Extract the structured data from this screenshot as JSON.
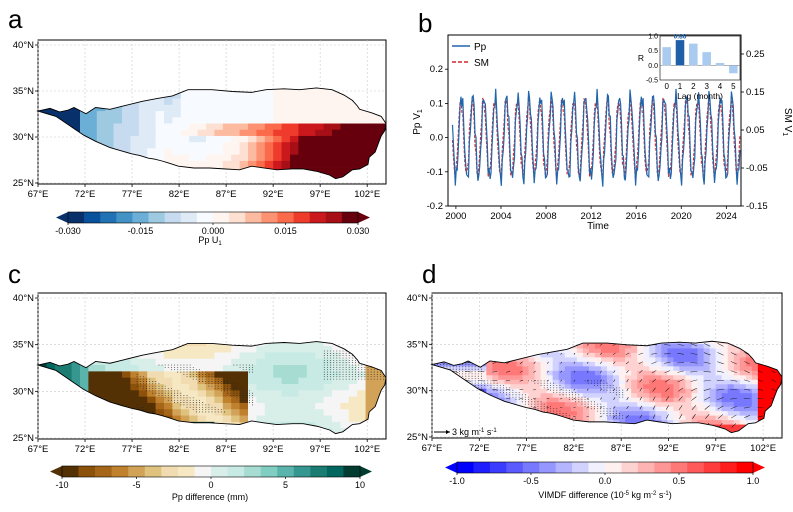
{
  "chart_data": [
    {
      "panel": "a",
      "type": "heatmap",
      "map_region": "Tibetan Plateau",
      "lon_ticks": [
        "67°E",
        "72°E",
        "77°E",
        "82°E",
        "87°E",
        "92°E",
        "97°E",
        "102°E"
      ],
      "lat_ticks": [
        "40°N",
        "35°N",
        "30°N",
        "25°N"
      ],
      "colorbar": {
        "label": "Pp U",
        "label_sub": "1",
        "ticks": [
          "-0.030",
          "-0.015",
          "0.000",
          "0.015",
          "0.030"
        ],
        "range": [
          -0.03,
          0.03
        ],
        "colors": [
          "#08306b",
          "#08519c",
          "#2171b5",
          "#4292c6",
          "#6baed6",
          "#9ecae1",
          "#c6dbef",
          "#deebf7",
          "#f7fbff",
          "#fff5f0",
          "#fee0d2",
          "#fcbba1",
          "#fc9272",
          "#fb6a4a",
          "#ef3b2c",
          "#cb181d",
          "#a50f15",
          "#67000d"
        ]
      }
    },
    {
      "panel": "b",
      "type": "line",
      "xlabel": "Time",
      "ylabel_left": "Pp V",
      "ylabel_left_sub": "1",
      "ylabel_right": "SM V",
      "ylabel_right_sub": "1",
      "ylim_left": [
        -0.2,
        0.3
      ],
      "ylim_right": [
        -0.15,
        0.3
      ],
      "xlim": [
        1999.3,
        2025.3
      ],
      "x_ticks": [
        "2000",
        "2004",
        "2008",
        "2012",
        "2016",
        "2020",
        "2024"
      ],
      "y_ticks_left": [
        "-0.2",
        "-0.1",
        "0.0",
        "0.1",
        "0.2"
      ],
      "y_ticks_right": [
        "-0.15",
        "-0.05",
        "0.05",
        "0.15",
        "0.25"
      ],
      "series": [
        {
          "name": "Pp",
          "color": "#2166ac",
          "style": "solid",
          "cycle_amplitude": 0.12,
          "cycle_center": 0.0
        },
        {
          "name": "SM",
          "color": "#d62728",
          "style": "dashed",
          "cycle_amplitude": 0.11,
          "cycle_center": 0.0
        }
      ],
      "inset": {
        "type": "bar",
        "xlabel": "Lag (month)",
        "ylabel": "R",
        "categories": [
          "0",
          "1",
          "2",
          "3",
          "4",
          "5"
        ],
        "values": [
          0.62,
          0.86,
          0.74,
          0.45,
          0.08,
          -0.27
        ],
        "ylim": [
          -0.5,
          1.0
        ],
        "y_ticks": [
          "1.0",
          "0.5",
          "0.0",
          "-0.5"
        ],
        "highlight_index": 1,
        "highlight_label": "0.86"
      }
    },
    {
      "panel": "c",
      "type": "heatmap",
      "lon_ticks": [
        "67°E",
        "72°E",
        "77°E",
        "82°E",
        "87°E",
        "92°E",
        "97°E",
        "102°E"
      ],
      "lat_ticks": [
        "40°N",
        "35°N",
        "30°N",
        "25°N"
      ],
      "colorbar": {
        "label": "Pp difference (mm)",
        "ticks": [
          "-10",
          "-5",
          "0",
          "5",
          "10"
        ],
        "range": [
          -10,
          10
        ],
        "colors": [
          "#543005",
          "#8c510a",
          "#a6661a",
          "#bf812d",
          "#d2a258",
          "#dfc27d",
          "#f0dcb0",
          "#f6e8c3",
          "#f5f5f5",
          "#d8eee9",
          "#c7eae5",
          "#a6dcd2",
          "#80cdc1",
          "#5ab4ac",
          "#35978f",
          "#1b7d72",
          "#01665e",
          "#003c30"
        ]
      }
    },
    {
      "panel": "d",
      "type": "heatmap",
      "lon_ticks": [
        "67°E",
        "72°E",
        "77°E",
        "82°E",
        "87°E",
        "92°E",
        "97°E",
        "102°E"
      ],
      "lat_ticks": [
        "40°N",
        "35°N",
        "30°N",
        "25°N"
      ],
      "vector_key": "3 kg m",
      "vector_key_sup": "-1",
      "vector_key_tail": " s",
      "vector_key_sup2": "-1",
      "colorbar": {
        "label": "VIMDF difference (10",
        "label_sup": "-5",
        "label_mid": " kg m",
        "label_sup2": "-2",
        "label_tail": " s",
        "label_sup3": "-1",
        "label_end": ")",
        "ticks": [
          "-1.0",
          "-0.5",
          "0.0",
          "0.5",
          "1.0"
        ],
        "range": [
          -1.0,
          1.0
        ],
        "colors": [
          "#0000ff",
          "#1e1eff",
          "#3c3cff",
          "#5a5aff",
          "#7878ff",
          "#9696ff",
          "#b4b4ff",
          "#d2d2ff",
          "#f0f0ff",
          "#fff0f0",
          "#ffd2d2",
          "#ffb4b4",
          "#ff9696",
          "#ff7878",
          "#ff5a5a",
          "#ff3c3c",
          "#ff1e1e",
          "#ff0000"
        ]
      }
    }
  ]
}
